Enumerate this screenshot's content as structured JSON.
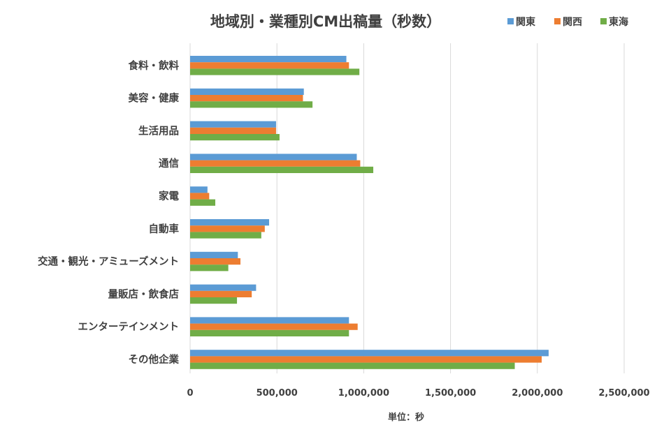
{
  "chart_data": {
    "type": "bar",
    "orientation": "horizontal",
    "title": "地域別・業種別CM出稿量（秒数）",
    "xlabel": "単位：秒",
    "ylabel": "",
    "xlim": [
      0,
      2500000
    ],
    "ticks": [
      0,
      500000,
      1000000,
      1500000,
      2000000,
      2500000
    ],
    "tick_labels": [
      "0",
      "500,000",
      "1,000,000",
      "1,500,000",
      "2,000,000",
      "2,500,000"
    ],
    "grid": true,
    "legend_position": "top-right",
    "categories": [
      "食料・飲料",
      "美容・健康",
      "生活用品",
      "通信",
      "家電",
      "自動車",
      "交通・観光・アミューズメント",
      "量販店・飲食店",
      "エンターテインメント",
      "その他企業"
    ],
    "series": [
      {
        "name": "関東",
        "color": "#5b9bd5",
        "values": [
          900000,
          655000,
          495000,
          960000,
          100000,
          455000,
          275000,
          380000,
          915000,
          2065000
        ]
      },
      {
        "name": "関西",
        "color": "#ed7d31",
        "values": [
          915000,
          650000,
          495000,
          980000,
          110000,
          430000,
          290000,
          355000,
          965000,
          2025000
        ]
      },
      {
        "name": "東海",
        "color": "#70ad47",
        "values": [
          975000,
          705000,
          515000,
          1055000,
          145000,
          410000,
          220000,
          270000,
          915000,
          1870000
        ]
      }
    ]
  }
}
